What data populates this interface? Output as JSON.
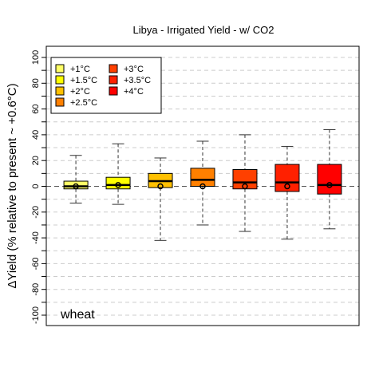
{
  "chart_data": {
    "type": "box",
    "title": "Libya - Irrigated Yield - w/ CO2",
    "ylabel": "ΔYield (% relative to present ~ +0.6°C)",
    "annotation": "wheat",
    "ylim": [
      -100,
      100
    ],
    "yticks": [
      -100,
      -90,
      -80,
      -70,
      -60,
      -50,
      -40,
      -30,
      -20,
      -10,
      0,
      10,
      20,
      30,
      40,
      50,
      60,
      70,
      80,
      90,
      100
    ],
    "ytick_labels": [
      "-100",
      "",
      "-80",
      "",
      "-60",
      "",
      "-40",
      "",
      "-20",
      "",
      "0",
      "",
      "20",
      "",
      "40",
      "",
      "60",
      "",
      "80",
      "",
      "100"
    ],
    "grid": "horizontal dashed every 10",
    "legend_position": "top-left",
    "series": [
      {
        "name": "+1°C",
        "color": "#ffff66",
        "whisker_low": -13,
        "q1": -2,
        "median": 0,
        "q3": 4,
        "whisker_high": 24,
        "mean": 0
      },
      {
        "name": "+1.5°C",
        "color": "#ffff00",
        "whisker_low": -14,
        "q1": -2,
        "median": 1,
        "q3": 7,
        "whisker_high": 33,
        "mean": 1
      },
      {
        "name": "+2°C",
        "color": "#ffc000",
        "whisker_low": -42,
        "q1": -1,
        "median": 4,
        "q3": 10,
        "whisker_high": 22,
        "mean": 0
      },
      {
        "name": "+2.5°C",
        "color": "#ff8000",
        "whisker_low": -30,
        "q1": 0,
        "median": 5,
        "q3": 14,
        "whisker_high": 35,
        "mean": 0
      },
      {
        "name": "+3°C",
        "color": "#ff4000",
        "whisker_low": -35,
        "q1": -2,
        "median": 3,
        "q3": 13,
        "whisker_high": 40,
        "mean": 0
      },
      {
        "name": "+3.5°C",
        "color": "#ff2000",
        "whisker_low": -41,
        "q1": -4,
        "median": 3,
        "q3": 17,
        "whisker_high": 31,
        "mean": 0
      },
      {
        "name": "+4°C",
        "color": "#ff0000",
        "whisker_low": -33,
        "q1": -6,
        "median": 1,
        "q3": 17,
        "whisker_high": 44,
        "mean": 1
      }
    ]
  }
}
